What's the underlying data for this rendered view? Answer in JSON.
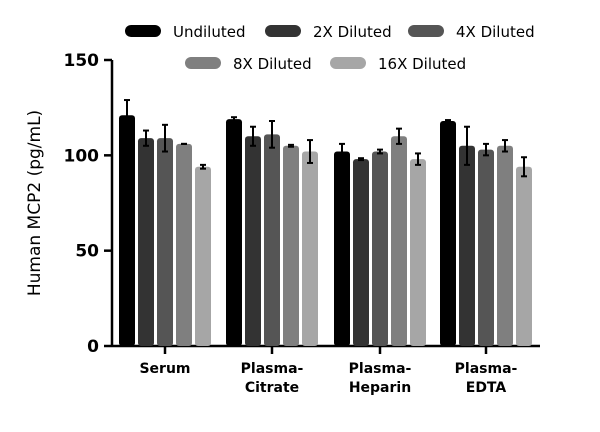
{
  "chart_data": {
    "type": "bar",
    "title": "",
    "xlabel": "",
    "ylabel": "Human MCP2 (pg/mL)",
    "ylim": [
      0,
      150
    ],
    "yticks": [
      0,
      50,
      100,
      150
    ],
    "categories": [
      [
        "Serum"
      ],
      [
        "Plasma-",
        "Citrate"
      ],
      [
        "Plasma-",
        "Heparin"
      ],
      [
        "Plasma-",
        "EDTA"
      ]
    ],
    "legend_position": "top",
    "series": [
      {
        "name": "Undiluted",
        "color": "#000000",
        "values": [
          121,
          119,
          102,
          118
        ],
        "errors": [
          8,
          1,
          4,
          0.5
        ]
      },
      {
        "name": "2X Diluted",
        "color": "#333333",
        "values": [
          109,
          110,
          98,
          105
        ],
        "errors": [
          4,
          5,
          0.5,
          10
        ]
      },
      {
        "name": "4X Diluted",
        "color": "#555555",
        "values": [
          109,
          111,
          102,
          103
        ],
        "errors": [
          7,
          7,
          1,
          3
        ]
      },
      {
        "name": "8X Diluted",
        "color": "#7f7f7f",
        "values": [
          106,
          105,
          110,
          105
        ],
        "errors": [
          0,
          0.5,
          4,
          3
        ]
      },
      {
        "name": "16X Diluted",
        "color": "#a6a6a6",
        "values": [
          94,
          102,
          98,
          94
        ],
        "errors": [
          1,
          6,
          3,
          5
        ]
      }
    ]
  }
}
